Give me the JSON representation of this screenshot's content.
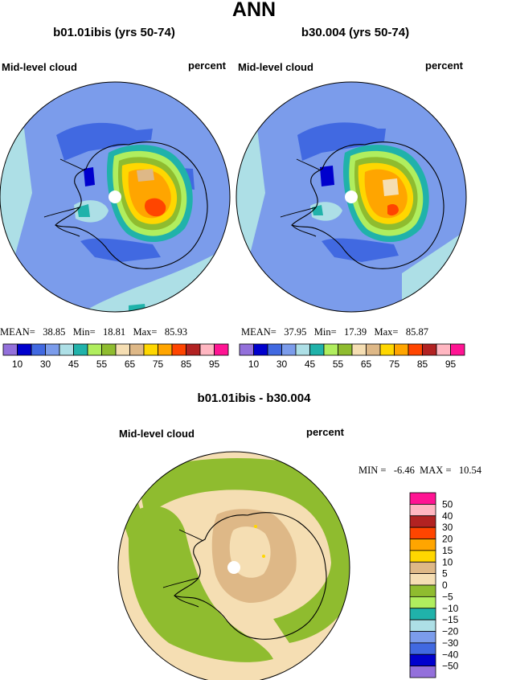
{
  "page_title": "ANN",
  "panels": [
    {
      "title": "b01.01ibis (yrs 50-74)",
      "variable": "Mid-level cloud",
      "units": "percent",
      "stats": {
        "mean_label": "MEAN=",
        "mean": "38.85",
        "min_label": "Min=",
        "min": "18.81",
        "max_label": "Max=",
        "max": "85.93"
      }
    },
    {
      "title": "b30.004 (yrs 50-74)",
      "variable": "Mid-level cloud",
      "units": "percent",
      "stats": {
        "mean_label": "MEAN=",
        "mean": "37.95",
        "min_label": "Min=",
        "min": "17.39",
        "max_label": "Max=",
        "max": "85.87"
      }
    },
    {
      "title": "b01.01ibis - b30.004",
      "variable": "Mid-level cloud",
      "units": "percent",
      "stats": {
        "min_label": "MIN =",
        "min": "-6.46",
        "max_label": "MAX =",
        "max": "10.54"
      }
    }
  ],
  "colorbar_top": {
    "colors": [
      "#9370DB",
      "#0000CD",
      "#4169E1",
      "#7B9CEB",
      "#ADDFE6",
      "#20B2AA",
      "#B0EE5E",
      "#8FBC2F",
      "#F5DEB3",
      "#DEB887",
      "#FFD700",
      "#FFA500",
      "#FF4500",
      "#B22222",
      "#FFB6C1",
      "#FF1493"
    ],
    "tick_labels": [
      "10",
      "30",
      "45",
      "55",
      "65",
      "75",
      "85",
      "95"
    ]
  },
  "colorbar_diff": {
    "colors": [
      "#9370DB",
      "#0000CD",
      "#4169E1",
      "#7B9CEB",
      "#ADDFE6",
      "#20B2AA",
      "#B0EE5E",
      "#8FBC2F",
      "#F5DEB3",
      "#DEB887",
      "#FFD700",
      "#FFA500",
      "#FF4500",
      "#B22222",
      "#FFB6C1",
      "#FF1493"
    ],
    "tick_labels": [
      "50",
      "40",
      "30",
      "20",
      "15",
      "10",
      "5",
      "0",
      "−5",
      "−10",
      "−15",
      "−20",
      "−30",
      "−40",
      "−50"
    ]
  },
  "chart_data": [
    {
      "type": "heatmap",
      "title": "b01.01ibis (yrs 50-74)",
      "variable": "Mid-level cloud",
      "units": "percent",
      "projection": "south polar stereographic",
      "mean": 38.85,
      "min": 18.81,
      "max": 85.93,
      "levels": [
        5,
        10,
        20,
        30,
        40,
        45,
        50,
        55,
        60,
        65,
        70,
        75,
        80,
        85,
        90,
        95
      ]
    },
    {
      "type": "heatmap",
      "title": "b30.004 (yrs 50-74)",
      "variable": "Mid-level cloud",
      "units": "percent",
      "projection": "south polar stereographic",
      "mean": 37.95,
      "min": 17.39,
      "max": 85.87,
      "levels": [
        5,
        10,
        20,
        30,
        40,
        45,
        50,
        55,
        60,
        65,
        70,
        75,
        80,
        85,
        90,
        95
      ]
    },
    {
      "type": "heatmap",
      "title": "b01.01ibis - b30.004",
      "variable": "Mid-level cloud",
      "units": "percent",
      "projection": "south polar stereographic",
      "min": -6.46,
      "max": 10.54,
      "levels": [
        -50,
        -40,
        -30,
        -20,
        -15,
        -10,
        -5,
        0,
        5,
        10,
        15,
        20,
        30,
        40,
        50
      ]
    }
  ]
}
